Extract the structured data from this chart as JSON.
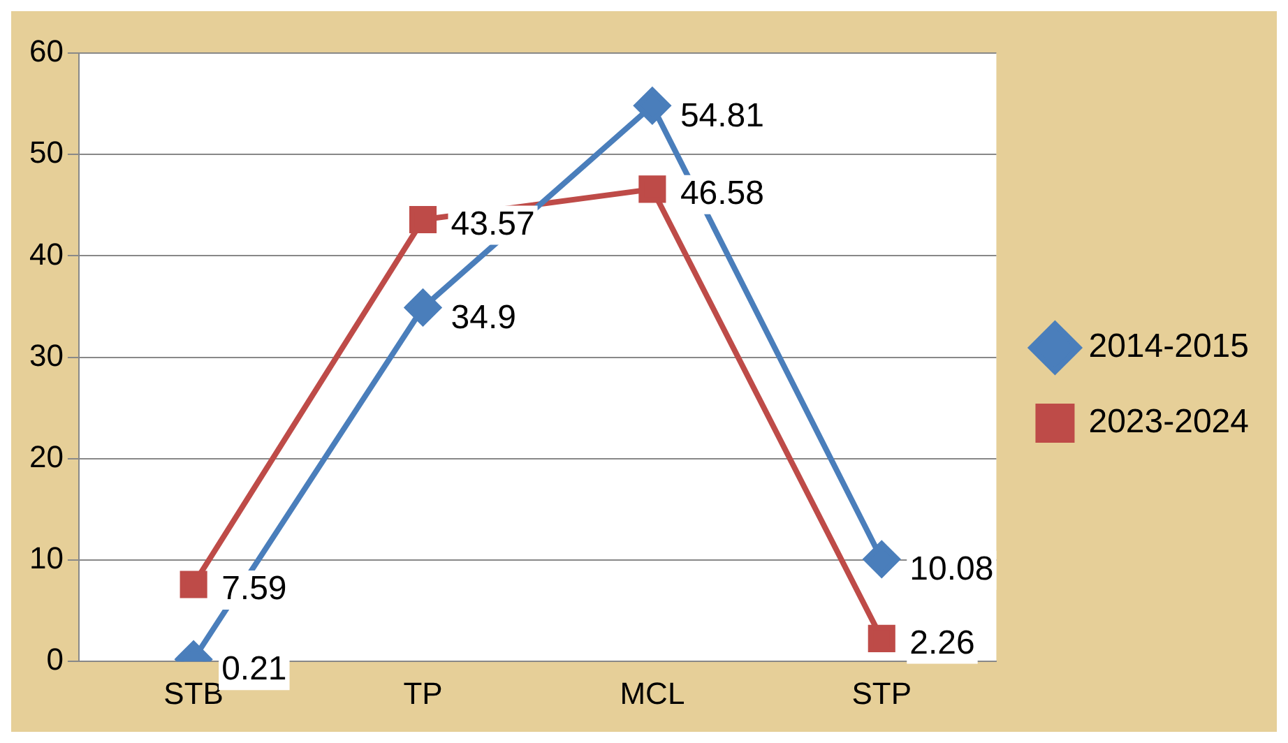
{
  "chart_data": {
    "type": "line",
    "categories": [
      "STB",
      "TP",
      "MCL",
      "STP"
    ],
    "series": [
      {
        "name": "2014-2015",
        "color": "#4a7ebb",
        "marker": "diamond",
        "values": [
          0.21,
          34.9,
          54.81,
          10.08
        ]
      },
      {
        "name": "2023-2024",
        "color": "#be4b48",
        "marker": "square",
        "values": [
          7.59,
          43.57,
          46.58,
          2.26
        ]
      }
    ],
    "ylim": [
      0,
      60
    ],
    "yticks": [
      0,
      10,
      20,
      30,
      40,
      50,
      60
    ],
    "grid": "y",
    "legend": "right",
    "data_labels": true
  }
}
